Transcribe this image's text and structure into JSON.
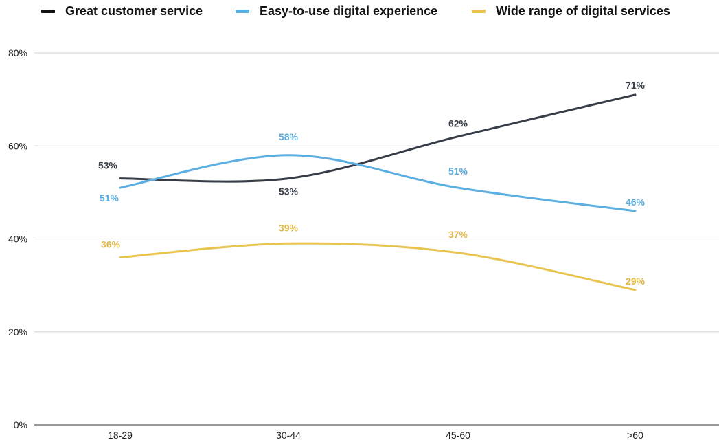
{
  "chart_data": {
    "type": "line",
    "categories": [
      "18-29",
      "30-44",
      "45-60",
      ">60"
    ],
    "series": [
      {
        "name": "Great customer service",
        "values": [
          53,
          53,
          62,
          71
        ],
        "labels": [
          "53%",
          "53%",
          "62%",
          "71%"
        ],
        "color": "#363d47",
        "label_color": "#363d47"
      },
      {
        "name": "Easy-to-use digital experience",
        "values": [
          51,
          58,
          51,
          46
        ],
        "labels": [
          "51%",
          "58%",
          "51%",
          "46%"
        ],
        "color": "#5aaee0",
        "label_color": "#5aaee0"
      },
      {
        "name": "Wide range of digital services",
        "values": [
          36,
          39,
          37,
          29
        ],
        "labels": [
          "36%",
          "39%",
          "37%",
          "29%"
        ],
        "color": "#e8c451",
        "label_color": "#e0b947"
      }
    ],
    "ylim": [
      0,
      80
    ],
    "yticks": [
      0,
      20,
      40,
      60,
      80
    ],
    "ytick_labels": [
      "0%",
      "20%",
      "40%",
      "60%",
      "80%"
    ],
    "grid": true,
    "legend_position": "top",
    "smooth": true
  }
}
